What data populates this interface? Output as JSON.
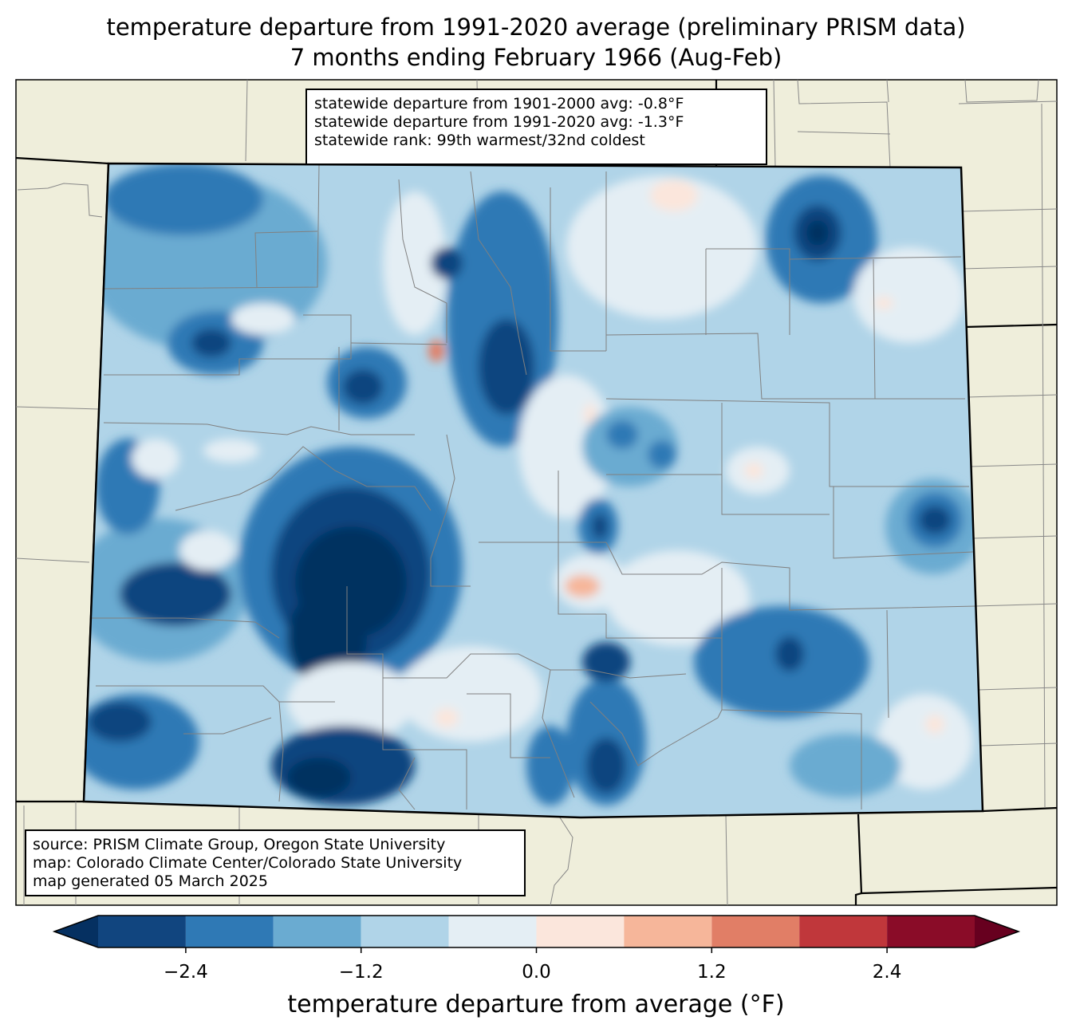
{
  "title": {
    "line1": "temperature departure from 1991-2020 average (preliminary PRISM data)",
    "line2": "7 months ending February 1966 (Aug-Feb)"
  },
  "stats_box": {
    "line1": "statewide departure from 1901-2000 avg: -0.8°F",
    "line2": "statewide departure from 1991-2020 avg: -1.3°F",
    "line3": "statewide rank: 99th warmest/32nd coldest"
  },
  "source_box": {
    "line1": "source: PRISM Climate Group, Oregon State University",
    "line2": "map: Colorado Climate Center/Colorado State University",
    "line3": "map generated 05 March 2025"
  },
  "colorbar": {
    "label": "temperature departure from average (°F)",
    "ticks": [
      "−2.4",
      "−1.2",
      "0.0",
      "1.2",
      "2.4"
    ],
    "tick_values": [
      -2.4,
      -1.2,
      0.0,
      1.2,
      2.4
    ],
    "range": [
      -3.0,
      3.0
    ],
    "bin_edges": [
      -3.0,
      -2.4,
      -1.8,
      -1.2,
      -0.6,
      0.0,
      0.6,
      1.2,
      1.8,
      2.4,
      3.0
    ],
    "colors": [
      "#11457f",
      "#2f79b5",
      "#6aabd1",
      "#b0d4e8",
      "#e4eef4",
      "#fbe6dc",
      "#f6b69a",
      "#e17e66",
      "#c0373b",
      "#8a0c28"
    ],
    "under_color": "#053061",
    "over_color": "#67001f"
  },
  "colors": {
    "land": "#efeedb",
    "state_border": "#000000",
    "county_border": "#808080"
  }
}
